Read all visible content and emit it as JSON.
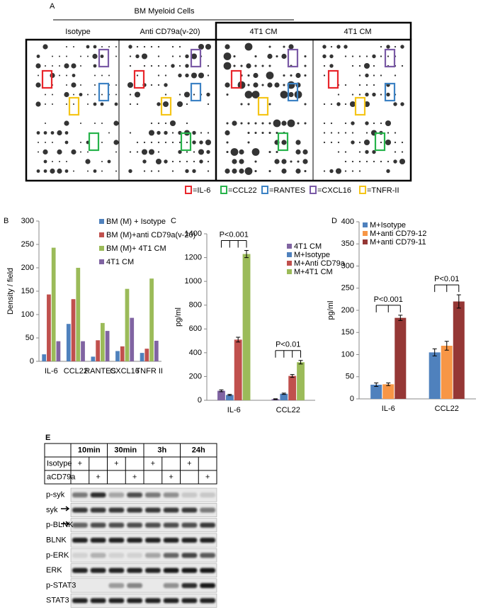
{
  "panel_a": {
    "label": "A",
    "group_title": "BM Myeloid Cells",
    "columns": [
      "Isotype",
      "Anti CD79a(v-20)",
      "4T1 CM",
      "4T1 CM"
    ],
    "legend": [
      {
        "label": "=IL-6",
        "color": "#e8262b"
      },
      {
        "label": "=CCL22",
        "color": "#27b34b"
      },
      {
        "label": "=RANTES",
        "color": "#3c82c4"
      },
      {
        "label": "=CXCL16",
        "color": "#7a5aa6"
      },
      {
        "label": "=TNFR-II",
        "color": "#f5c518"
      }
    ]
  },
  "chart_data": [
    {
      "type": "bar",
      "panel": "B",
      "ylabel": "Density / field",
      "categories": [
        "IL-6",
        "CCL22",
        "RANTES",
        "CXCL16",
        "TNFR II"
      ],
      "ylim": [
        0,
        300
      ],
      "yticks": [
        0,
        50,
        100,
        150,
        200,
        250,
        300
      ],
      "legend": "upper right",
      "series": [
        {
          "name": "BM (M) + Isotype",
          "color": "#4f81bd",
          "values": [
            15,
            80,
            10,
            22,
            18
          ]
        },
        {
          "name": "BM (M)+anti CD79a(v-20)",
          "color": "#c0504d",
          "values": [
            143,
            133,
            45,
            32,
            27
          ]
        },
        {
          "name": "BM (M)+ 4T1 CM",
          "color": "#9bbb59",
          "values": [
            243,
            200,
            82,
            155,
            177
          ]
        },
        {
          "name": "4T1 CM",
          "color": "#8064a2",
          "values": [
            43,
            43,
            65,
            93,
            44
          ]
        }
      ]
    },
    {
      "type": "bar",
      "panel": "C",
      "ylabel": "pg/ml",
      "categories": [
        "IL-6",
        "CCL22"
      ],
      "ylim": [
        0,
        1400
      ],
      "yticks": [
        0,
        200,
        400,
        600,
        800,
        1000,
        1200,
        1400
      ],
      "legend": "upper right",
      "annotations": [
        "P<0.001",
        "P<0.01"
      ],
      "series": [
        {
          "name": "4T1 CM",
          "color": "#8064a2",
          "values": [
            80,
            10
          ],
          "errors": [
            8,
            3
          ]
        },
        {
          "name": "M+Isotype",
          "color": "#4f81bd",
          "values": [
            45,
            55
          ],
          "errors": [
            5,
            5
          ]
        },
        {
          "name": "M+Anti CD79a",
          "color": "#c0504d",
          "values": [
            510,
            205
          ],
          "errors": [
            20,
            12
          ]
        },
        {
          "name": "M+4T1 CM",
          "color": "#9bbb59",
          "values": [
            1230,
            320
          ],
          "errors": [
            30,
            15
          ]
        }
      ]
    },
    {
      "type": "bar",
      "panel": "D",
      "ylabel": "pg/ml",
      "categories": [
        "IL-6",
        "CCL22"
      ],
      "ylim": [
        0,
        400
      ],
      "yticks": [
        0,
        50,
        100,
        150,
        200,
        250,
        300,
        350,
        400
      ],
      "legend": "upper left",
      "annotations": [
        "P<0.001",
        "P<0.01"
      ],
      "series": [
        {
          "name": "M+Isotype",
          "color": "#4f81bd",
          "values": [
            32,
            105
          ],
          "errors": [
            4,
            8
          ]
        },
        {
          "name": "M+anti CD79-12",
          "color": "#f79646",
          "values": [
            33,
            120
          ],
          "errors": [
            3,
            10
          ]
        },
        {
          "name": "M+anti CD79-11",
          "color": "#953735",
          "values": [
            183,
            220
          ],
          "errors": [
            6,
            15
          ]
        }
      ]
    }
  ],
  "panel_e": {
    "label": "E",
    "timepoints": [
      "10min",
      "30min",
      "3h",
      "24h"
    ],
    "treatments": [
      {
        "label": "Isotype",
        "cells": [
          "+",
          null,
          "+",
          null,
          "+",
          null,
          "+",
          null
        ]
      },
      {
        "label": "aCD79a",
        "cells": [
          null,
          "+",
          null,
          "+",
          null,
          "+",
          null,
          "+"
        ]
      }
    ],
    "blots": [
      "p-syk",
      "syk",
      "p-BLNK",
      "BLNK",
      "p-ERK",
      "ERK",
      "p-STAT3",
      "STAT3"
    ]
  }
}
